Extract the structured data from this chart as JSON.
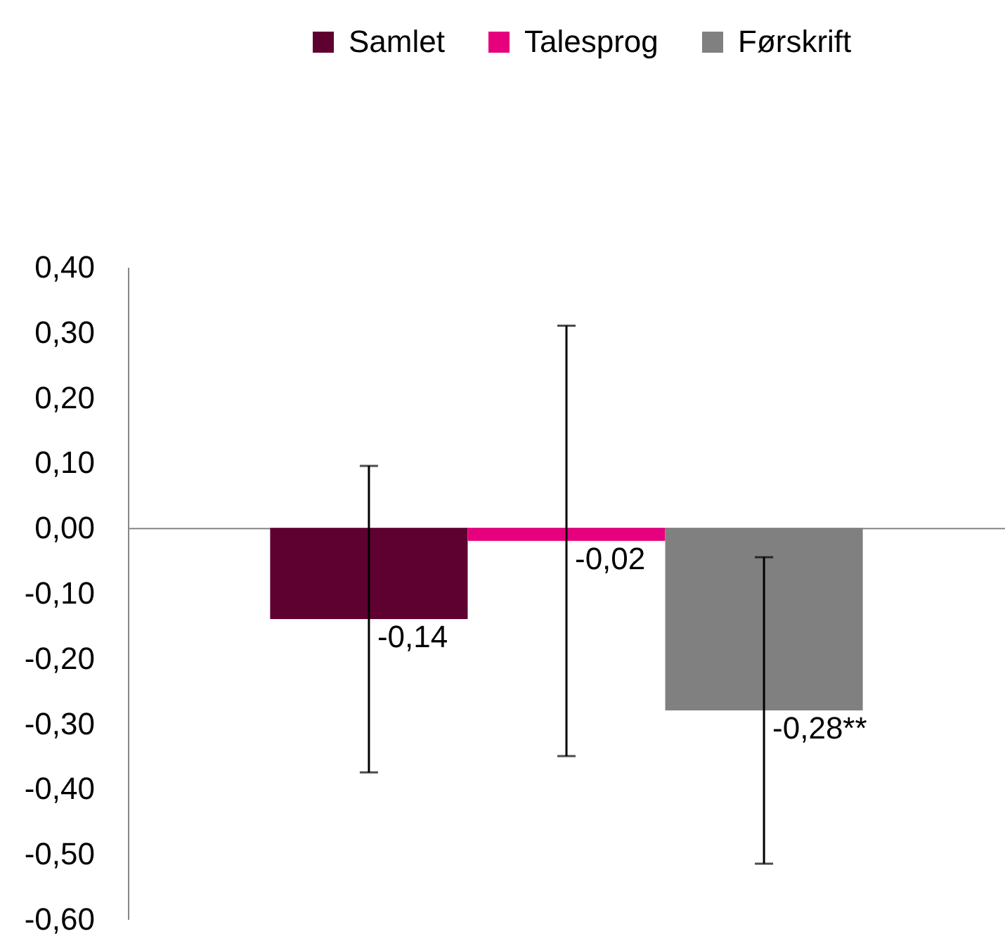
{
  "chart_data": {
    "type": "bar",
    "categories": [
      null
    ],
    "series": [
      {
        "name": "Samlet",
        "color": "#5e0030",
        "values": [
          -0.14
        ],
        "errors": [
          0.235
        ],
        "value_labels": [
          "-0,14"
        ]
      },
      {
        "name": "Talesprog",
        "color": "#e6007e",
        "values": [
          -0.02
        ],
        "errors": [
          0.33
        ],
        "value_labels": [
          "-0,02"
        ]
      },
      {
        "name": "Førskrift",
        "color": "#808080",
        "values": [
          -0.28
        ],
        "errors": [
          0.235
        ],
        "value_labels": [
          "-0,28**"
        ]
      }
    ],
    "ylim": [
      -0.6,
      0.4
    ],
    "yticks": [
      {
        "value": -0.6,
        "label": "-0,60"
      },
      {
        "value": -0.5,
        "label": "-0,50"
      },
      {
        "value": -0.4,
        "label": "-0,40"
      },
      {
        "value": -0.3,
        "label": "-0,30"
      },
      {
        "value": -0.2,
        "label": "-0,20"
      },
      {
        "value": -0.1,
        "label": "-0,10"
      },
      {
        "value": 0,
        "label": "0,00"
      },
      {
        "value": 0.1,
        "label": "0,10"
      },
      {
        "value": 0.2,
        "label": "0,20"
      },
      {
        "value": 0.3,
        "label": "0,30"
      },
      {
        "value": 0.4,
        "label": "0,40"
      }
    ],
    "legend": "top"
  }
}
